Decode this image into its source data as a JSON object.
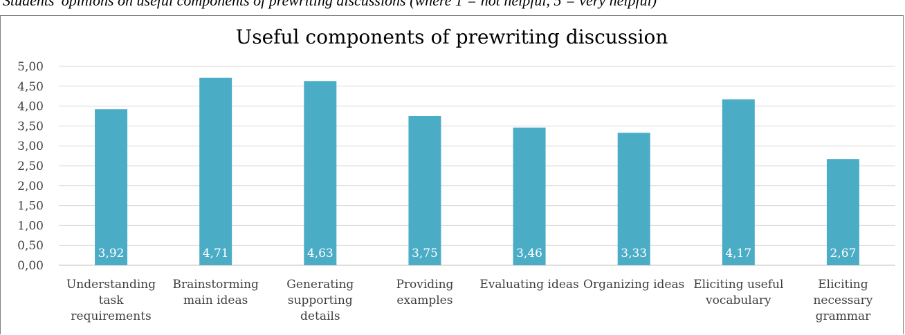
{
  "caption": "Students' opinions on useful components of prewriting discussions (where 1 = not helpful, 5 = very helpful)",
  "chart_data": {
    "type": "bar",
    "title": "Useful components of prewriting discussion",
    "xlabel": "",
    "ylabel": "",
    "categories": [
      "Understanding task requirements",
      "Brainstorming main ideas",
      "Generating supporting details",
      "Providing examples",
      "Evaluating ideas",
      "Organizing ideas",
      "Eliciting useful vocabulary",
      "Eliciting necessary grammar"
    ],
    "category_lines": [
      [
        "Understanding",
        "task",
        "requirements"
      ],
      [
        "Brainstorming",
        "main ideas"
      ],
      [
        "Generating",
        "supporting",
        "details"
      ],
      [
        "Providing",
        "examples"
      ],
      [
        "Evaluating ideas"
      ],
      [
        "Organizing ideas"
      ],
      [
        "Eliciting useful",
        "vocabulary"
      ],
      [
        "Eliciting",
        "necessary",
        "grammar"
      ]
    ],
    "values": [
      3.92,
      4.71,
      4.63,
      3.75,
      3.46,
      3.33,
      4.17,
      2.67
    ],
    "value_labels": [
      "3,92",
      "4,71",
      "4,63",
      "3,75",
      "3,46",
      "3,33",
      "4,17",
      "2,67"
    ],
    "ylim": [
      0,
      5
    ],
    "yticks": [
      0,
      0.5,
      1,
      1.5,
      2,
      2.5,
      3,
      3.5,
      4,
      4.5,
      5
    ],
    "ytick_labels": [
      "0,00",
      "0,50",
      "1,00",
      "1,50",
      "2,00",
      "2,50",
      "3,00",
      "3,50",
      "4,00",
      "4,50",
      "5,00"
    ],
    "grid": true,
    "legend": "none",
    "colors": {
      "bar": "#4bacc6",
      "grid": "#d9d9d9",
      "axis": "#bfbfbf",
      "text": "#404040",
      "label": "#ffffff"
    }
  }
}
